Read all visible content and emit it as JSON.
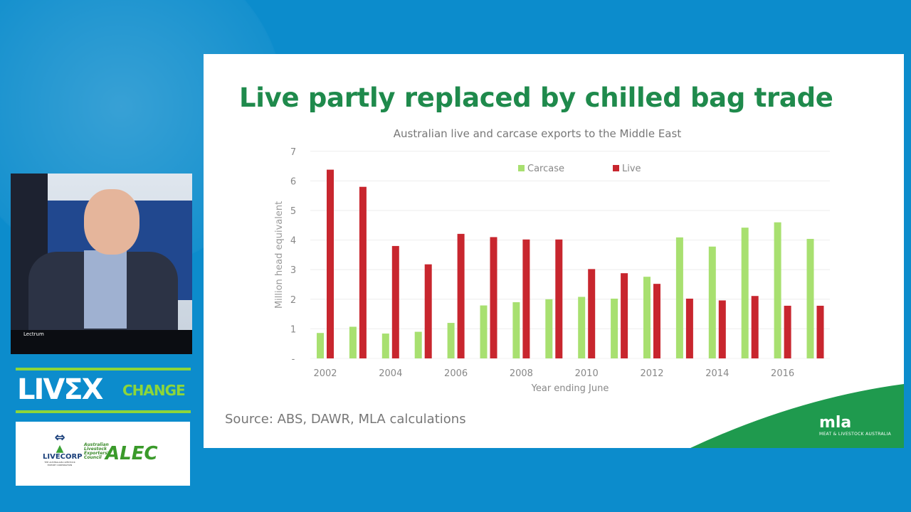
{
  "slide": {
    "title": "Live partly replaced by chilled bag trade",
    "source": "Source: ABS, DAWR, MLA calculations",
    "brand_logo": "mla",
    "brand_tagline": "MEAT & LIVESTOCK AUSTRALIA"
  },
  "camera": {
    "lectern_label": "Lectrum"
  },
  "event_logo": {
    "part1": "LIVΣX",
    "part2": "CHANGE"
  },
  "sponsor_logos": {
    "livecorp": "LIVECORP",
    "livecorp_sub": "THE AUSTRALIAN LIVESTOCK EXPORT CORPORATION",
    "alec_small": "Australian Livestock Exporters' Council",
    "alec": "ALEC"
  },
  "chart_data": {
    "type": "bar",
    "title": "Australian live and carcase exports to the Middle East",
    "xlabel": "Year ending June",
    "ylabel": "Million head equivalent",
    "ylim": [
      0,
      7
    ],
    "yticks": [
      "-",
      "1",
      "2",
      "3",
      "4",
      "5",
      "6",
      "7"
    ],
    "categories": [
      "2002",
      "2003",
      "2004",
      "2005",
      "2006",
      "2007",
      "2008",
      "2009",
      "2010",
      "2011",
      "2012",
      "2013",
      "2014",
      "2015",
      "2016",
      "2017"
    ],
    "xtick_labels": [
      "2002",
      "2004",
      "2006",
      "2008",
      "2010",
      "2012",
      "2014",
      "2016"
    ],
    "legend_position": "top",
    "grid": true,
    "series": [
      {
        "name": "Carcase",
        "color": "#a8e070",
        "values": [
          0.86,
          1.07,
          0.84,
          0.9,
          1.2,
          1.79,
          1.9,
          2.0,
          2.08,
          2.02,
          2.76,
          4.09,
          3.78,
          4.42,
          4.6,
          4.04
        ]
      },
      {
        "name": "Live",
        "color": "#c8262e",
        "values": [
          6.38,
          5.8,
          3.8,
          3.18,
          4.21,
          4.1,
          4.02,
          4.02,
          3.02,
          2.88,
          2.52,
          2.02,
          1.96,
          2.11,
          1.78,
          1.78
        ]
      }
    ]
  }
}
